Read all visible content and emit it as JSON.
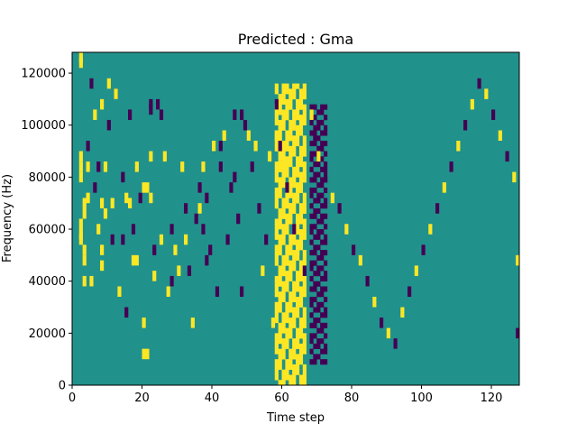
{
  "chart_data": {
    "type": "heatmap",
    "title": "Predicted : Gma",
    "xlabel": "Time step",
    "ylabel": "Frequency (Hz)",
    "xlim": [
      0,
      128
    ],
    "ylim": [
      0,
      128000
    ],
    "n_time": 128,
    "n_freq": 64,
    "x_ticks": [
      0,
      20,
      40,
      60,
      80,
      100,
      120
    ],
    "y_ticks": [
      0,
      20000,
      40000,
      60000,
      80000,
      100000,
      120000
    ],
    "grid": false,
    "background_value": 1,
    "colors": {
      "0": "#440154",
      "1": "#21918c",
      "2": "#fde725"
    },
    "cells": [
      [
        2,
        63,
        2
      ],
      [
        2,
        62,
        2
      ],
      [
        2,
        44,
        2
      ],
      [
        2,
        42,
        2
      ],
      [
        2,
        40,
        2
      ],
      [
        2,
        31,
        2
      ],
      [
        2,
        29,
        2
      ],
      [
        2,
        28,
        2
      ],
      [
        3,
        33,
        2
      ],
      [
        3,
        35,
        2
      ],
      [
        3,
        26,
        2
      ],
      [
        3,
        24,
        2
      ],
      [
        3,
        20,
        2
      ],
      [
        4,
        36,
        2
      ],
      [
        4,
        42,
        2
      ],
      [
        4,
        46,
        0
      ],
      [
        5,
        58,
        0
      ],
      [
        5,
        20,
        2
      ],
      [
        6,
        52,
        2
      ],
      [
        6,
        38,
        0
      ],
      [
        7,
        42,
        0
      ],
      [
        7,
        30,
        2
      ],
      [
        8,
        54,
        2
      ],
      [
        8,
        35,
        2
      ],
      [
        8,
        26,
        2
      ],
      [
        8,
        23,
        2
      ],
      [
        9,
        42,
        2
      ],
      [
        9,
        33,
        2
      ],
      [
        10,
        58,
        2
      ],
      [
        10,
        50,
        0
      ],
      [
        11,
        35,
        2
      ],
      [
        11,
        28,
        0
      ],
      [
        12,
        56,
        0
      ],
      [
        12,
        56,
        2
      ],
      [
        13,
        18,
        2
      ],
      [
        14,
        28,
        0
      ],
      [
        14,
        40,
        0
      ],
      [
        15,
        36,
        2
      ],
      [
        15,
        14,
        0
      ],
      [
        16,
        52,
        0
      ],
      [
        16,
        35,
        2
      ],
      [
        17,
        30,
        0
      ],
      [
        17,
        24,
        2
      ],
      [
        18,
        42,
        2
      ],
      [
        18,
        24,
        2
      ],
      [
        19,
        36,
        0
      ],
      [
        20,
        38,
        2
      ],
      [
        20,
        12,
        2
      ],
      [
        20,
        6,
        2
      ],
      [
        21,
        38,
        2
      ],
      [
        21,
        6,
        2
      ],
      [
        22,
        54,
        0
      ],
      [
        22,
        53,
        0
      ],
      [
        22,
        44,
        2
      ],
      [
        22,
        36,
        2
      ],
      [
        23,
        26,
        0
      ],
      [
        23,
        21,
        2
      ],
      [
        24,
        54,
        0
      ],
      [
        25,
        52,
        0
      ],
      [
        25,
        28,
        2
      ],
      [
        26,
        44,
        2
      ],
      [
        27,
        18,
        2
      ],
      [
        28,
        30,
        0
      ],
      [
        28,
        20,
        0
      ],
      [
        29,
        26,
        2
      ],
      [
        30,
        22,
        2
      ],
      [
        31,
        42,
        2
      ],
      [
        32,
        34,
        0
      ],
      [
        32,
        28,
        2
      ],
      [
        33,
        22,
        0
      ],
      [
        34,
        12,
        2
      ],
      [
        35,
        32,
        0
      ],
      [
        36,
        38,
        0
      ],
      [
        36,
        34,
        2
      ],
      [
        37,
        42,
        2
      ],
      [
        37,
        30,
        0
      ],
      [
        38,
        36,
        0
      ],
      [
        38,
        24,
        0
      ],
      [
        39,
        26,
        0
      ],
      [
        40,
        46,
        2
      ],
      [
        41,
        18,
        0
      ],
      [
        42,
        46,
        0
      ],
      [
        42,
        42,
        0
      ],
      [
        43,
        48,
        2
      ],
      [
        44,
        28,
        0
      ],
      [
        45,
        38,
        0
      ],
      [
        46,
        52,
        0
      ],
      [
        46,
        40,
        0
      ],
      [
        47,
        32,
        0
      ],
      [
        48,
        52,
        0
      ],
      [
        48,
        18,
        0
      ],
      [
        49,
        50,
        0
      ],
      [
        50,
        48,
        2
      ],
      [
        51,
        42,
        0
      ],
      [
        52,
        46,
        2
      ],
      [
        53,
        34,
        0
      ],
      [
        54,
        22,
        2
      ],
      [
        55,
        28,
        0
      ],
      [
        56,
        44,
        2
      ],
      [
        57,
        12,
        2
      ],
      [
        58,
        54,
        0
      ],
      [
        58,
        48,
        2
      ],
      [
        59,
        46,
        0
      ],
      [
        60,
        42,
        2
      ],
      [
        61,
        38,
        0
      ],
      [
        62,
        34,
        2
      ],
      [
        63,
        30,
        0
      ],
      [
        64,
        26,
        2
      ],
      [
        66,
        22,
        0
      ],
      [
        68,
        52,
        2
      ],
      [
        69,
        48,
        0
      ],
      [
        70,
        44,
        2
      ],
      [
        72,
        40,
        0
      ],
      [
        74,
        36,
        2
      ],
      [
        76,
        34,
        0
      ],
      [
        78,
        30,
        2
      ],
      [
        80,
        26,
        0
      ],
      [
        82,
        24,
        2
      ],
      [
        84,
        20,
        0
      ],
      [
        86,
        16,
        2
      ],
      [
        88,
        12,
        0
      ],
      [
        90,
        10,
        2
      ],
      [
        92,
        8,
        0
      ],
      [
        94,
        14,
        2
      ],
      [
        96,
        18,
        0
      ],
      [
        98,
        22,
        2
      ],
      [
        100,
        26,
        0
      ],
      [
        102,
        30,
        2
      ],
      [
        104,
        34,
        0
      ],
      [
        106,
        38,
        2
      ],
      [
        108,
        42,
        0
      ],
      [
        110,
        46,
        2
      ],
      [
        112,
        50,
        0
      ],
      [
        114,
        54,
        2
      ],
      [
        116,
        58,
        0
      ],
      [
        118,
        56,
        2
      ],
      [
        120,
        52,
        0
      ],
      [
        122,
        48,
        2
      ],
      [
        124,
        44,
        0
      ],
      [
        126,
        40,
        2
      ],
      [
        127,
        24,
        2
      ],
      [
        127,
        10,
        0
      ]
    ]
  }
}
